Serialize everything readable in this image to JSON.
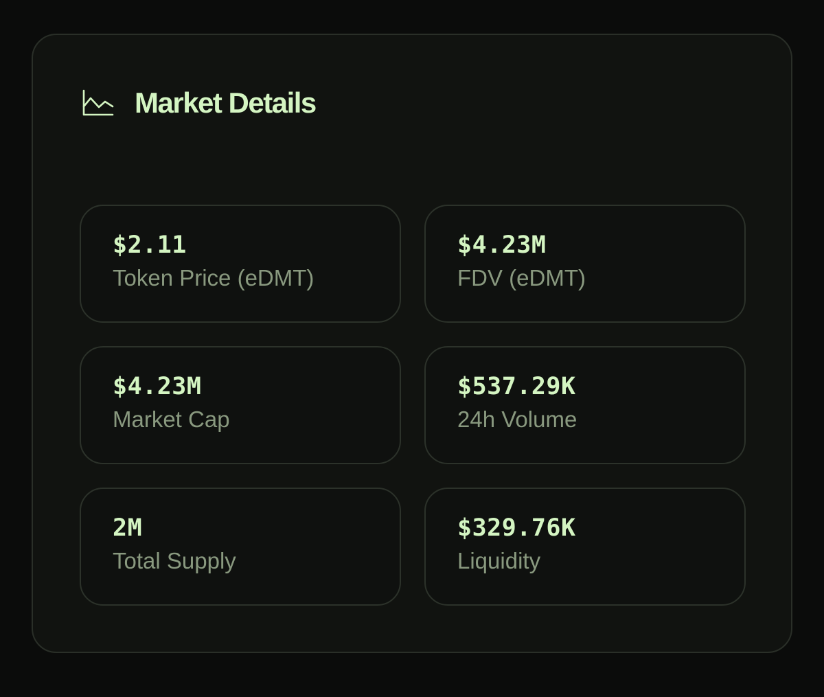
{
  "card": {
    "title": "Market Details",
    "icon": "line-chart-icon"
  },
  "stats": [
    {
      "value": "$2.11",
      "label": "Token Price (eDMT)"
    },
    {
      "value": "$4.23M",
      "label": "FDV (eDMT)"
    },
    {
      "value": "$4.23M",
      "label": "Market Cap"
    },
    {
      "value": "$537.29K",
      "label": "24h Volume"
    },
    {
      "value": "2M",
      "label": "Total Supply"
    },
    {
      "value": "$329.76K",
      "label": "Liquidity"
    }
  ],
  "colors": {
    "accent": "#d4f5c2",
    "label": "#89997f",
    "background": "#0b0c0b",
    "card": "#111310",
    "border": "#2c322a"
  }
}
